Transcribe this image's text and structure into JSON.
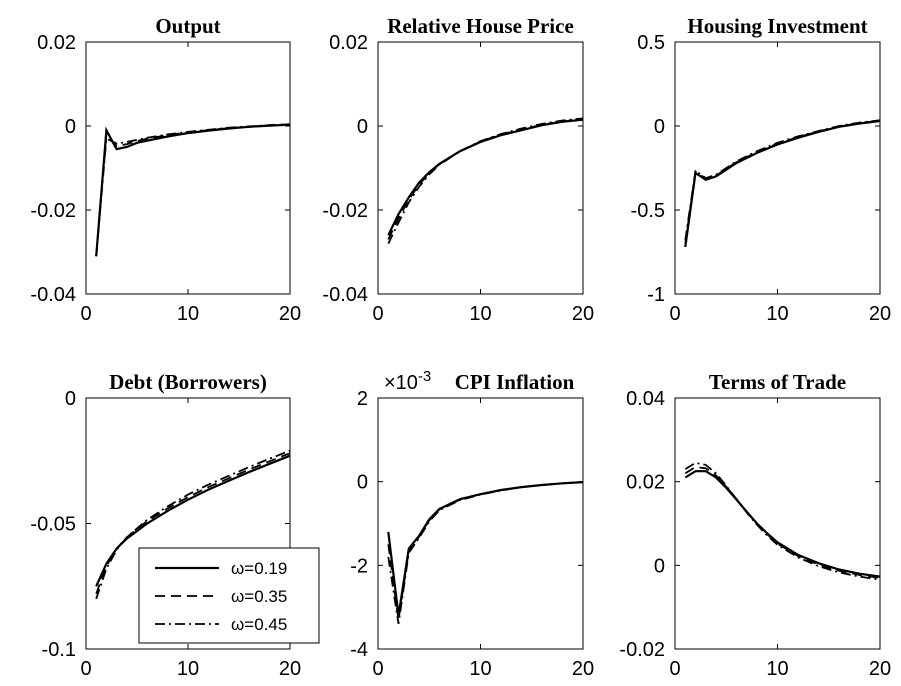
{
  "chart_data": [
    {
      "type": "line",
      "title": "Output",
      "xlim": [
        0,
        20
      ],
      "ylim": [
        -0.04,
        0.02
      ],
      "xticks": [
        0,
        10,
        20
      ],
      "xtick_labels": [
        "0",
        "10",
        "20"
      ],
      "yticks": [
        -0.04,
        -0.02,
        0,
        0.02
      ],
      "ytick_labels": [
        "-0.04",
        "-0.02",
        "0",
        "0.02"
      ],
      "series": [
        {
          "x": [
            1,
            2,
            3,
            4,
            5,
            6,
            8,
            10,
            12,
            14,
            16,
            18,
            20
          ],
          "values": [
            -0.031,
            -0.001,
            -0.0055,
            -0.005,
            -0.004,
            -0.0035,
            -0.0025,
            -0.0017,
            -0.0011,
            -0.0006,
            -0.0002,
            0.0001,
            0.0003
          ]
        },
        {
          "x": [
            1,
            2,
            3,
            4,
            5,
            6,
            8,
            10,
            12,
            14,
            16,
            18,
            20
          ],
          "values": [
            -0.031,
            -0.002,
            -0.0048,
            -0.0043,
            -0.0036,
            -0.003,
            -0.0022,
            -0.0015,
            -0.001,
            -0.0005,
            -0.0002,
            0.0002,
            0.0004
          ]
        },
        {
          "x": [
            1,
            2,
            3,
            4,
            5,
            6,
            8,
            10,
            12,
            14,
            16,
            18,
            20
          ],
          "values": [
            -0.031,
            -0.003,
            -0.0042,
            -0.0038,
            -0.0033,
            -0.0028,
            -0.002,
            -0.0014,
            -0.0009,
            -0.0004,
            -0.0001,
            0.0002,
            0.0004
          ]
        }
      ]
    },
    {
      "type": "line",
      "title": "Relative House Price",
      "xlim": [
        0,
        20
      ],
      "ylim": [
        -0.04,
        0.02
      ],
      "xticks": [
        0,
        10,
        20
      ],
      "xtick_labels": [
        "0",
        "10",
        "20"
      ],
      "yticks": [
        -0.04,
        -0.02,
        0,
        0.02
      ],
      "ytick_labels": [
        "-0.04",
        "-0.02",
        "0",
        "0.02"
      ],
      "series": [
        {
          "x": [
            1,
            2,
            3,
            4,
            5,
            6,
            8,
            10,
            12,
            14,
            16,
            18,
            20
          ],
          "values": [
            -0.026,
            -0.021,
            -0.017,
            -0.0135,
            -0.011,
            -0.009,
            -0.006,
            -0.0038,
            -0.0022,
            -0.001,
            0.0002,
            0.001,
            0.0015
          ]
        },
        {
          "x": [
            1,
            2,
            3,
            4,
            5,
            6,
            8,
            10,
            12,
            14,
            16,
            18,
            20
          ],
          "values": [
            -0.027,
            -0.022,
            -0.0175,
            -0.014,
            -0.0112,
            -0.0091,
            -0.006,
            -0.0037,
            -0.002,
            -0.0008,
            0.0003,
            0.0011,
            0.0016
          ]
        },
        {
          "x": [
            1,
            2,
            3,
            4,
            5,
            6,
            8,
            10,
            12,
            14,
            16,
            18,
            20
          ],
          "values": [
            -0.028,
            -0.023,
            -0.0182,
            -0.0145,
            -0.0115,
            -0.0092,
            -0.006,
            -0.0036,
            -0.0019,
            -0.0006,
            0.0005,
            0.0013,
            0.0018
          ]
        }
      ]
    },
    {
      "type": "line",
      "title": "Housing Investment",
      "xlim": [
        0,
        20
      ],
      "ylim": [
        -1,
        0.5
      ],
      "xticks": [
        0,
        10,
        20
      ],
      "xtick_labels": [
        "0",
        "10",
        "20"
      ],
      "yticks": [
        -1,
        -0.5,
        0,
        0.5
      ],
      "ytick_labels": [
        "-1",
        "-0.5",
        "0",
        "0.5"
      ],
      "series": [
        {
          "x": [
            1,
            2,
            3,
            4,
            5,
            6,
            8,
            10,
            12,
            14,
            16,
            18,
            20
          ],
          "values": [
            -0.72,
            -0.28,
            -0.32,
            -0.3,
            -0.26,
            -0.22,
            -0.16,
            -0.11,
            -0.07,
            -0.035,
            -0.005,
            0.015,
            0.03
          ]
        },
        {
          "x": [
            1,
            2,
            3,
            4,
            5,
            6,
            8,
            10,
            12,
            14,
            16,
            18,
            20
          ],
          "values": [
            -0.7,
            -0.27,
            -0.315,
            -0.295,
            -0.255,
            -0.215,
            -0.155,
            -0.105,
            -0.066,
            -0.032,
            -0.003,
            0.017,
            0.032
          ]
        },
        {
          "x": [
            1,
            2,
            3,
            4,
            5,
            6,
            8,
            10,
            12,
            14,
            16,
            18,
            20
          ],
          "values": [
            -0.68,
            -0.265,
            -0.31,
            -0.29,
            -0.25,
            -0.21,
            -0.15,
            -0.1,
            -0.062,
            -0.03,
            0.0,
            0.02,
            0.034
          ]
        }
      ]
    },
    {
      "type": "line",
      "title": "Debt (Borrowers)",
      "xlim": [
        0,
        20
      ],
      "ylim": [
        -0.1,
        0
      ],
      "xticks": [
        0,
        10,
        20
      ],
      "xtick_labels": [
        "0",
        "10",
        "20"
      ],
      "yticks": [
        -0.1,
        -0.05,
        0
      ],
      "ytick_labels": [
        "-0.1",
        "-0.05",
        "0"
      ],
      "legend": {
        "position": "bottom-left",
        "entries": [
          "ω=0.19",
          "ω=0.35",
          "ω=0.45"
        ]
      },
      "series": [
        {
          "name": "ω=0.19",
          "style": "solid",
          "x": [
            1,
            2,
            3,
            4,
            6,
            8,
            10,
            12,
            14,
            16,
            18,
            20
          ],
          "values": [
            -0.075,
            -0.066,
            -0.06,
            -0.056,
            -0.05,
            -0.045,
            -0.0405,
            -0.0365,
            -0.033,
            -0.0295,
            -0.0262,
            -0.023
          ]
        },
        {
          "name": "ω=0.35",
          "style": "dashed",
          "x": [
            1,
            2,
            3,
            4,
            6,
            8,
            10,
            12,
            14,
            16,
            18,
            20
          ],
          "values": [
            -0.078,
            -0.067,
            -0.06,
            -0.0555,
            -0.049,
            -0.044,
            -0.0395,
            -0.0355,
            -0.032,
            -0.0285,
            -0.0252,
            -0.022
          ]
        },
        {
          "name": "ω=0.45",
          "style": "dashdot",
          "x": [
            1,
            2,
            3,
            4,
            6,
            8,
            10,
            12,
            14,
            16,
            18,
            20
          ],
          "values": [
            -0.08,
            -0.068,
            -0.0605,
            -0.0555,
            -0.0485,
            -0.0432,
            -0.0385,
            -0.0345,
            -0.031,
            -0.0275,
            -0.0242,
            -0.021
          ]
        }
      ]
    },
    {
      "type": "line",
      "title": "CPI Inflation",
      "multiplier": {
        "base": "×10",
        "exponent": "-3"
      },
      "xlim": [
        0,
        20
      ],
      "ylim": [
        -4,
        2
      ],
      "xticks": [
        0,
        10,
        20
      ],
      "xtick_labels": [
        "0",
        "10",
        "20"
      ],
      "yticks": [
        -4,
        -2,
        0,
        2
      ],
      "ytick_labels": [
        "-4",
        "-2",
        "0",
        "2"
      ],
      "series": [
        {
          "x": [
            1,
            2,
            3,
            4,
            5,
            6,
            8,
            10,
            12,
            14,
            16,
            18,
            20
          ],
          "values": [
            -1.2,
            -3.2,
            -1.6,
            -1.3,
            -0.9,
            -0.65,
            -0.42,
            -0.3,
            -0.2,
            -0.13,
            -0.08,
            -0.04,
            -0.01
          ]
        },
        {
          "x": [
            1,
            2,
            3,
            4,
            5,
            6,
            8,
            10,
            12,
            14,
            16,
            18,
            20
          ],
          "values": [
            -1.5,
            -3.3,
            -1.65,
            -1.32,
            -0.92,
            -0.66,
            -0.43,
            -0.3,
            -0.2,
            -0.13,
            -0.08,
            -0.04,
            -0.01
          ]
        },
        {
          "x": [
            1,
            2,
            3,
            4,
            5,
            6,
            8,
            10,
            12,
            14,
            16,
            18,
            20
          ],
          "values": [
            -1.8,
            -3.4,
            -1.7,
            -1.35,
            -0.95,
            -0.68,
            -0.44,
            -0.31,
            -0.21,
            -0.13,
            -0.08,
            -0.04,
            -0.01
          ]
        }
      ]
    },
    {
      "type": "line",
      "title": "Terms of Trade",
      "xlim": [
        0,
        20
      ],
      "ylim": [
        -0.02,
        0.04
      ],
      "xticks": [
        0,
        10,
        20
      ],
      "xtick_labels": [
        "0",
        "10",
        "20"
      ],
      "yticks": [
        -0.02,
        0,
        0.02,
        0.04
      ],
      "ytick_labels": [
        "-0.02",
        "0",
        "0.02",
        "0.04"
      ],
      "series": [
        {
          "x": [
            1,
            2,
            3,
            4,
            5,
            6,
            7,
            8,
            9,
            10,
            12,
            14,
            16,
            18,
            20
          ],
          "values": [
            0.021,
            0.0225,
            0.0225,
            0.021,
            0.0185,
            0.0157,
            0.0128,
            0.01,
            0.0076,
            0.0055,
            0.0025,
            0.0005,
            -0.001,
            -0.002,
            -0.0027
          ]
        },
        {
          "x": [
            1,
            2,
            3,
            4,
            5,
            6,
            7,
            8,
            9,
            10,
            12,
            14,
            16,
            18,
            20
          ],
          "values": [
            0.022,
            0.0235,
            0.0232,
            0.0215,
            0.0188,
            0.0158,
            0.0128,
            0.0099,
            0.0074,
            0.0052,
            0.0022,
            0.0002,
            -0.0013,
            -0.0023,
            -0.003
          ]
        },
        {
          "x": [
            1,
            2,
            3,
            4,
            5,
            6,
            7,
            8,
            9,
            10,
            12,
            14,
            16,
            18,
            20
          ],
          "values": [
            0.023,
            0.0245,
            0.024,
            0.022,
            0.019,
            0.0158,
            0.0126,
            0.0097,
            0.0071,
            0.0049,
            0.0019,
            -0.0002,
            -0.0017,
            -0.0027,
            -0.0034
          ]
        }
      ]
    }
  ]
}
